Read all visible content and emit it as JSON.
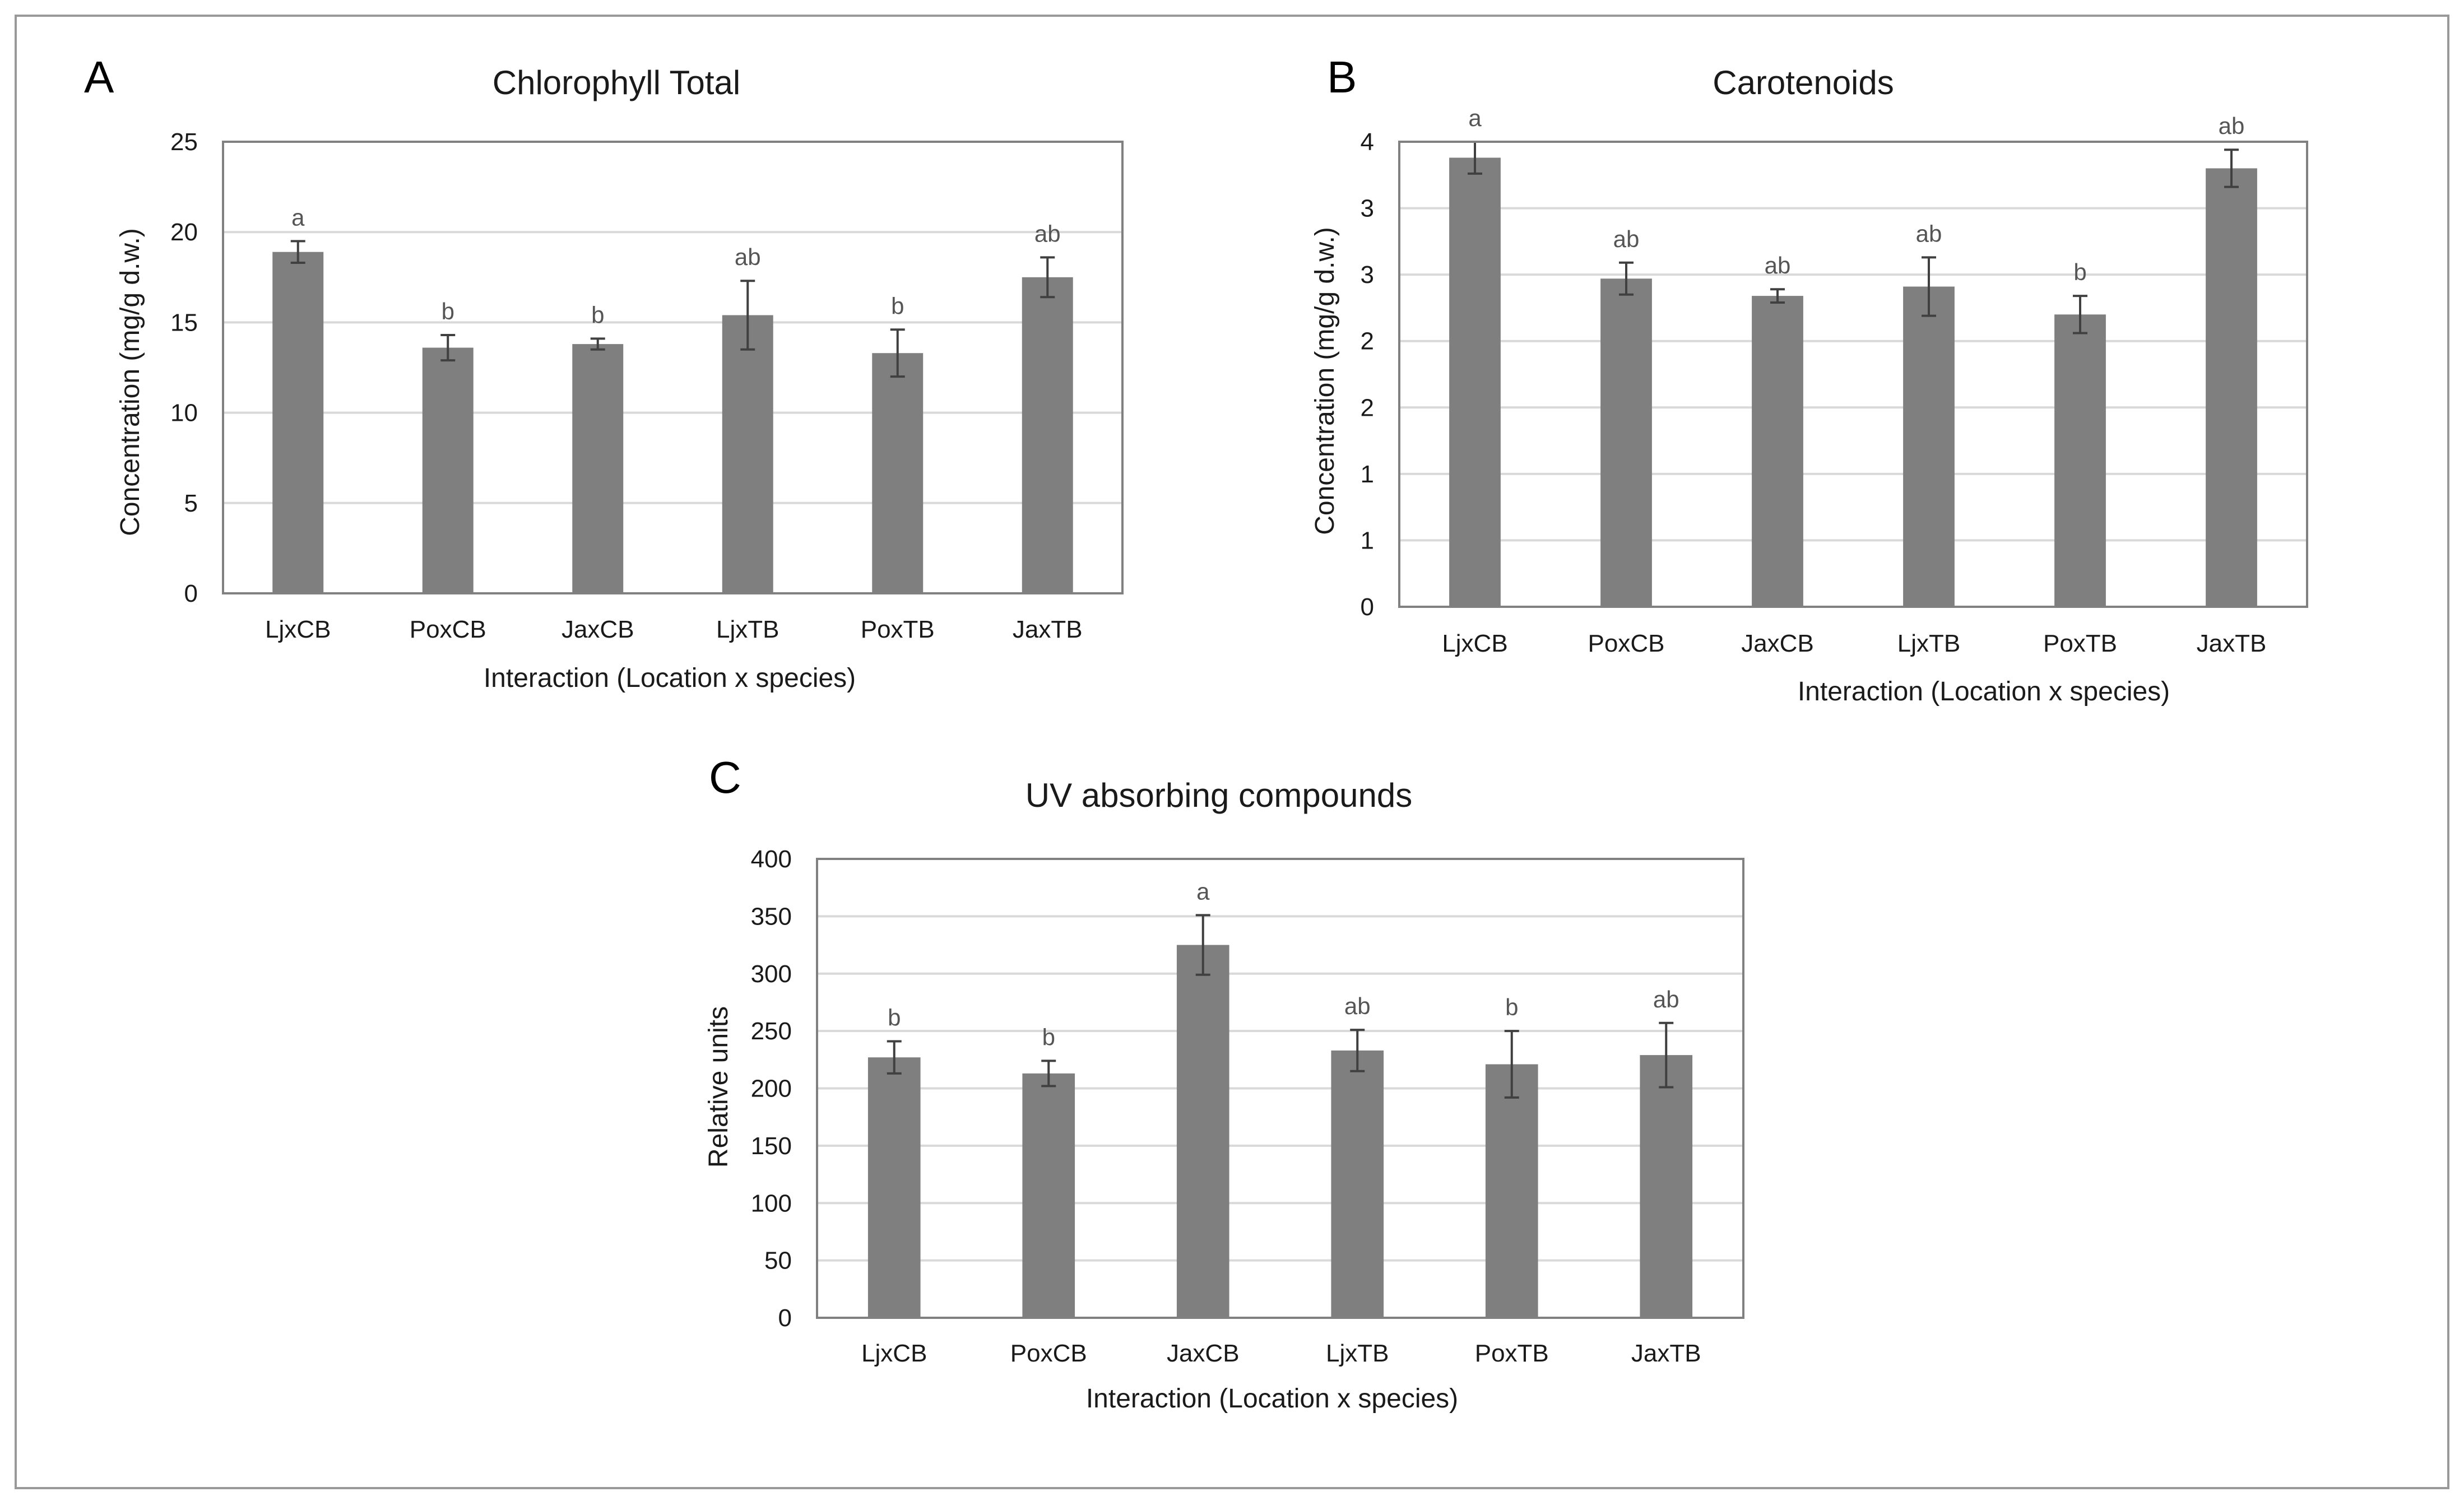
{
  "figure": {
    "colors": {
      "bar": "#7f7f7f",
      "grid": "#d9d9d9",
      "frame": "#808080",
      "error": "#404040"
    }
  },
  "chart_data": [
    {
      "panel": "A",
      "type": "bar",
      "title": "Chlorophyll Total",
      "xlabel": "Interaction (Location x species)",
      "ylabel": "Concentration (mg/g d.w.)",
      "categories": [
        "LjxCB",
        "PoxCB",
        "JaxCB",
        "LjxTB",
        "PoxTB",
        "JaxTB"
      ],
      "values": [
        18.9,
        13.6,
        13.8,
        15.4,
        13.3,
        17.5
      ],
      "errors": [
        0.6,
        0.7,
        0.3,
        1.9,
        1.3,
        1.1
      ],
      "significance": [
        "a",
        "b",
        "b",
        "ab",
        "b",
        "ab"
      ],
      "ylim": [
        0,
        25
      ],
      "yticks": [
        0,
        5,
        10,
        15,
        20,
        25
      ],
      "ytick_labels": [
        "0",
        "5",
        "10",
        "15",
        "20",
        "25"
      ],
      "grid": true
    },
    {
      "panel": "B",
      "type": "bar",
      "title": "Carotenoids",
      "xlabel": "Interaction (Location x species)",
      "ylabel": "Concentration (mg/g d.w.)",
      "categories": [
        "LjxCB",
        "PoxCB",
        "JaxCB",
        "LjxTB",
        "PoxTB",
        "JaxTB"
      ],
      "values": [
        3.38,
        2.47,
        2.34,
        2.41,
        2.2,
        3.3
      ],
      "errors": [
        0.12,
        0.12,
        0.05,
        0.22,
        0.14,
        0.14
      ],
      "significance": [
        "a",
        "ab",
        "ab",
        "ab",
        "b",
        "ab"
      ],
      "ylim": [
        0,
        3.5
      ],
      "yticks": [
        0,
        0.5,
        1,
        1.5,
        2,
        2.5,
        3,
        3.5
      ],
      "ytick_labels": [
        "0",
        "1",
        "1",
        "2",
        "2",
        "3",
        "3",
        "4"
      ],
      "grid": true
    },
    {
      "panel": "C",
      "type": "bar",
      "title": "UV absorbing compounds",
      "xlabel": "Interaction (Location x species)",
      "ylabel": "Relative units",
      "categories": [
        "LjxCB",
        "PoxCB",
        "JaxCB",
        "LjxTB",
        "PoxTB",
        "JaxTB"
      ],
      "values": [
        227,
        213,
        325,
        233,
        221,
        229
      ],
      "errors": [
        14,
        11,
        26,
        18,
        29,
        28
      ],
      "significance": [
        "b",
        "b",
        "a",
        "ab",
        "b",
        "ab"
      ],
      "ylim": [
        0,
        400
      ],
      "yticks": [
        0,
        50,
        100,
        150,
        200,
        250,
        300,
        350,
        400
      ],
      "ytick_labels": [
        "0",
        "50",
        "100",
        "150",
        "200",
        "250",
        "300",
        "350",
        "400"
      ],
      "grid": true
    }
  ]
}
